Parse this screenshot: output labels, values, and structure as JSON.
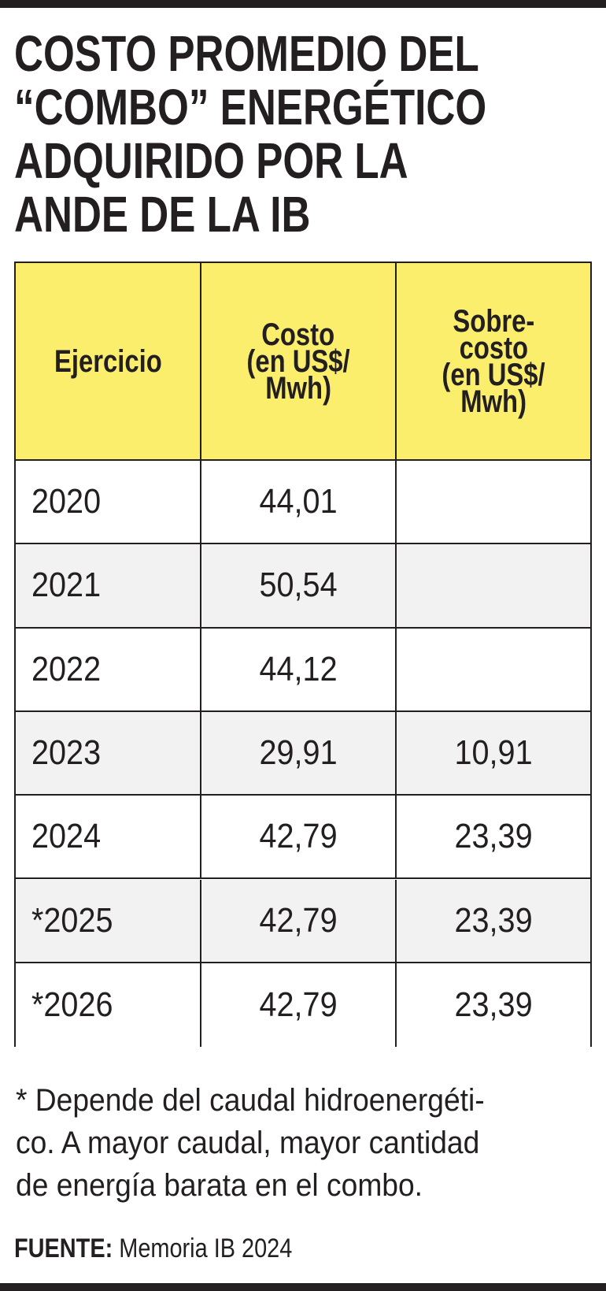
{
  "header": {
    "title_lines": [
      "COSTO PROMEDIO DEL",
      "“COMBO” ENERGÉTICO",
      "ADQUIRIDO POR LA",
      "ANDE DE LA IB"
    ]
  },
  "table": {
    "columns": [
      [
        "Ejercicio"
      ],
      [
        "Costo",
        "(en US$/",
        "Mwh)"
      ],
      [
        "Sobre-",
        "costo",
        "(en US$/",
        "Mwh)"
      ]
    ],
    "rows": [
      [
        "2020",
        "44,01",
        null
      ],
      [
        "2021",
        "50,54",
        null
      ],
      [
        "2022",
        "44,12",
        null
      ],
      [
        "2023",
        "29,91",
        "10,91"
      ],
      [
        "2024",
        "42,79",
        "23,39"
      ],
      [
        "*2025",
        "42,79",
        "23,39"
      ],
      [
        "*2026",
        "42,79",
        "23,39"
      ]
    ]
  },
  "footnote_lines": [
    "* Depende del caudal hidroenergéti-",
    "co. A mayor caudal, mayor cantidad",
    "de energía barata en el combo."
  ],
  "source": {
    "label": "FUENTE:",
    "text": "Memoria IB 2024"
  }
}
